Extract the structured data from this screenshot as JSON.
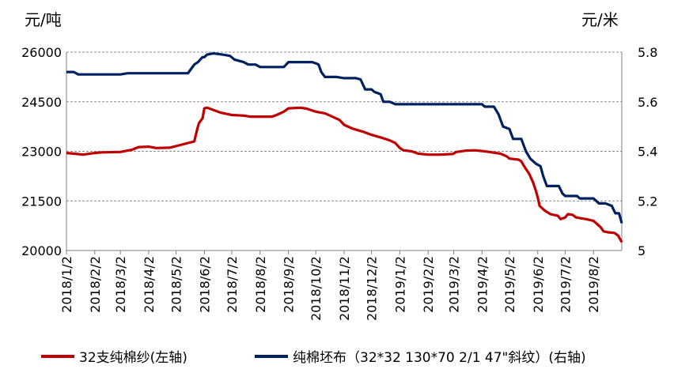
{
  "chart_data": {
    "type": "line",
    "left_axis": {
      "unit": "元/吨",
      "ticks": [
        20000,
        21500,
        23000,
        24500,
        26000
      ],
      "range": [
        20000,
        26000
      ]
    },
    "right_axis": {
      "unit": "元/米",
      "ticks": [
        "5",
        "5.2",
        "5.4",
        "5.6",
        "5.8"
      ],
      "range": [
        5.0,
        5.8
      ]
    },
    "x_range": [
      "2018-01-02",
      "2019-09-02"
    ],
    "categories": [
      "2018/1/2",
      "2018/2/2",
      "2018/3/2",
      "2018/4/2",
      "2018/5/2",
      "2018/6/2",
      "2018/7/2",
      "2018/8/2",
      "2018/9/2",
      "2018/10/2",
      "2018/11/2",
      "2018/12/2",
      "2019/1/2",
      "2019/2/2",
      "2019/3/2",
      "2019/4/2",
      "2019/5/2",
      "2019/6/2",
      "2019/7/2",
      "2019/8/2"
    ],
    "grid": "horizontal-dashed",
    "legend_position": "bottom",
    "series": [
      {
        "name": "32支纯棉纱(左轴)",
        "axis": "left",
        "color": "#C00000",
        "points": [
          [
            "2018-01-02",
            22950
          ],
          [
            "2018-01-10",
            22930
          ],
          [
            "2018-01-20",
            22900
          ],
          [
            "2018-02-02",
            22950
          ],
          [
            "2018-02-10",
            22970
          ],
          [
            "2018-03-02",
            22980
          ],
          [
            "2018-03-15",
            23050
          ],
          [
            "2018-03-22",
            23130
          ],
          [
            "2018-04-02",
            23140
          ],
          [
            "2018-04-10",
            23100
          ],
          [
            "2018-04-25",
            23110
          ],
          [
            "2018-05-05",
            23180
          ],
          [
            "2018-05-15",
            23250
          ],
          [
            "2018-05-22",
            23300
          ],
          [
            "2018-05-25",
            23650
          ],
          [
            "2018-05-27",
            23850
          ],
          [
            "2018-05-31",
            24000
          ],
          [
            "2018-06-02",
            24300
          ],
          [
            "2018-06-05",
            24320
          ],
          [
            "2018-06-12",
            24250
          ],
          [
            "2018-06-20",
            24170
          ],
          [
            "2018-07-02",
            24100
          ],
          [
            "2018-07-15",
            24080
          ],
          [
            "2018-07-22",
            24050
          ],
          [
            "2018-08-02",
            24050
          ],
          [
            "2018-08-15",
            24050
          ],
          [
            "2018-08-20",
            24100
          ],
          [
            "2018-08-28",
            24200
          ],
          [
            "2018-09-02",
            24300
          ],
          [
            "2018-09-15",
            24320
          ],
          [
            "2018-09-22",
            24290
          ],
          [
            "2018-10-02",
            24200
          ],
          [
            "2018-10-12",
            24150
          ],
          [
            "2018-10-20",
            24050
          ],
          [
            "2018-10-28",
            23950
          ],
          [
            "2018-11-02",
            23800
          ],
          [
            "2018-11-12",
            23680
          ],
          [
            "2018-11-22",
            23600
          ],
          [
            "2018-12-02",
            23500
          ],
          [
            "2018-12-12",
            23420
          ],
          [
            "2018-12-22",
            23330
          ],
          [
            "2018-12-28",
            23250
          ],
          [
            "2019-01-02",
            23100
          ],
          [
            "2019-01-06",
            23030
          ],
          [
            "2019-01-15",
            23000
          ],
          [
            "2019-01-22",
            22930
          ],
          [
            "2019-02-02",
            22900
          ],
          [
            "2019-02-15",
            22900
          ],
          [
            "2019-03-01",
            22920
          ],
          [
            "2019-03-05",
            22980
          ],
          [
            "2019-03-15",
            23020
          ],
          [
            "2019-03-25",
            23030
          ],
          [
            "2019-04-02",
            23010
          ],
          [
            "2019-04-10",
            22980
          ],
          [
            "2019-04-22",
            22930
          ],
          [
            "2019-04-29",
            22850
          ],
          [
            "2019-05-02",
            22780
          ],
          [
            "2019-05-12",
            22750
          ],
          [
            "2019-05-15",
            22700
          ],
          [
            "2019-05-18",
            22550
          ],
          [
            "2019-05-24",
            22300
          ],
          [
            "2019-05-28",
            22050
          ],
          [
            "2019-05-31",
            21800
          ],
          [
            "2019-06-02",
            21600
          ],
          [
            "2019-06-04",
            21350
          ],
          [
            "2019-06-10",
            21200
          ],
          [
            "2019-06-16",
            21100
          ],
          [
            "2019-06-24",
            21050
          ],
          [
            "2019-06-27",
            20950
          ],
          [
            "2019-07-02",
            21000
          ],
          [
            "2019-07-05",
            21100
          ],
          [
            "2019-07-10",
            21080
          ],
          [
            "2019-07-14",
            21000
          ],
          [
            "2019-07-25",
            20950
          ],
          [
            "2019-08-02",
            20900
          ],
          [
            "2019-08-06",
            20800
          ],
          [
            "2019-08-10",
            20700
          ],
          [
            "2019-08-13",
            20580
          ],
          [
            "2019-08-18",
            20550
          ],
          [
            "2019-08-25",
            20530
          ],
          [
            "2019-08-29",
            20450
          ],
          [
            "2019-09-02",
            20250
          ]
        ]
      },
      {
        "name": "纯棉坯布（32*32 130*70 2/1 47\"斜纹）(右轴)",
        "axis": "right",
        "color": "#002060",
        "points": [
          [
            "2018-01-02",
            5.72
          ],
          [
            "2018-01-10",
            5.72
          ],
          [
            "2018-01-15",
            5.71
          ],
          [
            "2018-02-02",
            5.71
          ],
          [
            "2018-03-02",
            5.71
          ],
          [
            "2018-03-10",
            5.715
          ],
          [
            "2018-04-02",
            5.715
          ],
          [
            "2018-04-25",
            5.715
          ],
          [
            "2018-05-15",
            5.715
          ],
          [
            "2018-05-18",
            5.73
          ],
          [
            "2018-05-22",
            5.75
          ],
          [
            "2018-05-26",
            5.76
          ],
          [
            "2018-05-31",
            5.78
          ],
          [
            "2018-06-02",
            5.78
          ],
          [
            "2018-06-05",
            5.79
          ],
          [
            "2018-06-12",
            5.795
          ],
          [
            "2018-06-22",
            5.79
          ],
          [
            "2018-06-30",
            5.785
          ],
          [
            "2018-07-05",
            5.77
          ],
          [
            "2018-07-15",
            5.76
          ],
          [
            "2018-07-20",
            5.75
          ],
          [
            "2018-07-28",
            5.75
          ],
          [
            "2018-08-02",
            5.74
          ],
          [
            "2018-08-15",
            5.74
          ],
          [
            "2018-08-28",
            5.74
          ],
          [
            "2018-09-02",
            5.76
          ],
          [
            "2018-09-15",
            5.76
          ],
          [
            "2018-09-28",
            5.76
          ],
          [
            "2018-10-02",
            5.755
          ],
          [
            "2018-10-05",
            5.75
          ],
          [
            "2018-10-08",
            5.72
          ],
          [
            "2018-10-12",
            5.7
          ],
          [
            "2018-10-25",
            5.7
          ],
          [
            "2018-11-02",
            5.695
          ],
          [
            "2018-11-15",
            5.695
          ],
          [
            "2018-11-20",
            5.69
          ],
          [
            "2018-11-25",
            5.65
          ],
          [
            "2018-12-02",
            5.65
          ],
          [
            "2018-12-05",
            5.64
          ],
          [
            "2018-12-12",
            5.63
          ],
          [
            "2018-12-15",
            5.6
          ],
          [
            "2018-12-22",
            5.6
          ],
          [
            "2018-12-28",
            5.59
          ],
          [
            "2019-01-02",
            5.59
          ],
          [
            "2019-02-02",
            5.59
          ],
          [
            "2019-03-02",
            5.59
          ],
          [
            "2019-04-02",
            5.59
          ],
          [
            "2019-04-05",
            5.58
          ],
          [
            "2019-04-15",
            5.58
          ],
          [
            "2019-04-20",
            5.55
          ],
          [
            "2019-04-25",
            5.5
          ],
          [
            "2019-05-02",
            5.49
          ],
          [
            "2019-05-06",
            5.45
          ],
          [
            "2019-05-15",
            5.45
          ],
          [
            "2019-05-20",
            5.4
          ],
          [
            "2019-05-25",
            5.37
          ],
          [
            "2019-05-31",
            5.35
          ],
          [
            "2019-06-05",
            5.34
          ],
          [
            "2019-06-08",
            5.3
          ],
          [
            "2019-06-12",
            5.26
          ],
          [
            "2019-06-15",
            5.26
          ],
          [
            "2019-06-25",
            5.26
          ],
          [
            "2019-06-29",
            5.23
          ],
          [
            "2019-07-02",
            5.22
          ],
          [
            "2019-07-15",
            5.22
          ],
          [
            "2019-07-18",
            5.21
          ],
          [
            "2019-07-25",
            5.21
          ],
          [
            "2019-08-02",
            5.21
          ],
          [
            "2019-08-08",
            5.19
          ],
          [
            "2019-08-15",
            5.19
          ],
          [
            "2019-08-22",
            5.18
          ],
          [
            "2019-08-26",
            5.15
          ],
          [
            "2019-08-30",
            5.15
          ],
          [
            "2019-09-02",
            5.11
          ]
        ]
      }
    ]
  }
}
